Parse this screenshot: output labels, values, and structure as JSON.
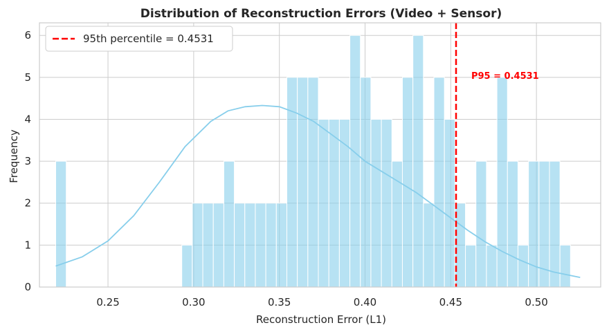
{
  "chart_data": {
    "type": "bar",
    "subtype": "histogram",
    "title": "Distribution of Reconstruction Errors (Video + Sensor)",
    "xlabel": "Reconstruction Error (L1)",
    "ylabel": "Frequency",
    "xlim": [
      0.21,
      0.5375
    ],
    "ylim": [
      0,
      6.3
    ],
    "xticks": [
      0.25,
      0.3,
      0.35,
      0.4,
      0.45,
      0.5
    ],
    "xtick_labels": [
      "0.25",
      "0.30",
      "0.35",
      "0.40",
      "0.45",
      "0.50"
    ],
    "yticks": [
      0,
      1,
      2,
      3,
      4,
      5,
      6
    ],
    "ytick_labels": [
      "0",
      "1",
      "2",
      "3",
      "4",
      "5",
      "6"
    ],
    "grid": true,
    "bin_start": 0.2195,
    "bin_width": 0.00613,
    "bin_counts": [
      3,
      0,
      0,
      0,
      0,
      0,
      0,
      0,
      0,
      0,
      0,
      0,
      1,
      2,
      2,
      2,
      3,
      2,
      2,
      2,
      2,
      2,
      5,
      5,
      5,
      4,
      4,
      4,
      6,
      5,
      4,
      4,
      3,
      5,
      6,
      2,
      5,
      4,
      2,
      1,
      3,
      1,
      5,
      3,
      1,
      3,
      3,
      3,
      1,
      0,
      0,
      0,
      0,
      0,
      0,
      0,
      0,
      0,
      0,
      0,
      0,
      0,
      0,
      0,
      0,
      0,
      0,
      0,
      0,
      0,
      0,
      0,
      0,
      0,
      0,
      0,
      0,
      0
    ],
    "kde": {
      "x": [
        0.2195,
        0.235,
        0.25,
        0.265,
        0.28,
        0.295,
        0.31,
        0.32,
        0.33,
        0.34,
        0.35,
        0.36,
        0.37,
        0.38,
        0.39,
        0.4,
        0.41,
        0.42,
        0.43,
        0.44,
        0.45,
        0.46,
        0.47,
        0.48,
        0.49,
        0.5,
        0.51,
        0.5255
      ],
      "y": [
        0.5,
        0.72,
        1.1,
        1.7,
        2.5,
        3.35,
        3.95,
        4.2,
        4.3,
        4.33,
        4.3,
        4.15,
        3.95,
        3.65,
        3.35,
        3.0,
        2.75,
        2.5,
        2.25,
        1.95,
        1.65,
        1.35,
        1.08,
        0.85,
        0.65,
        0.48,
        0.36,
        0.23
      ]
    },
    "threshold": {
      "value": 0.4531,
      "legend_label": "95th percentile = 0.4531",
      "annotation": "P95 = 0.4531",
      "annotation_y": 5.05
    },
    "legend_position": "upper-left",
    "colors": {
      "bar": "#87ceeb",
      "kde": "#87ceeb",
      "threshold": "#ff0000",
      "annotation": "#ff0000",
      "grid": "#cccccc"
    }
  }
}
